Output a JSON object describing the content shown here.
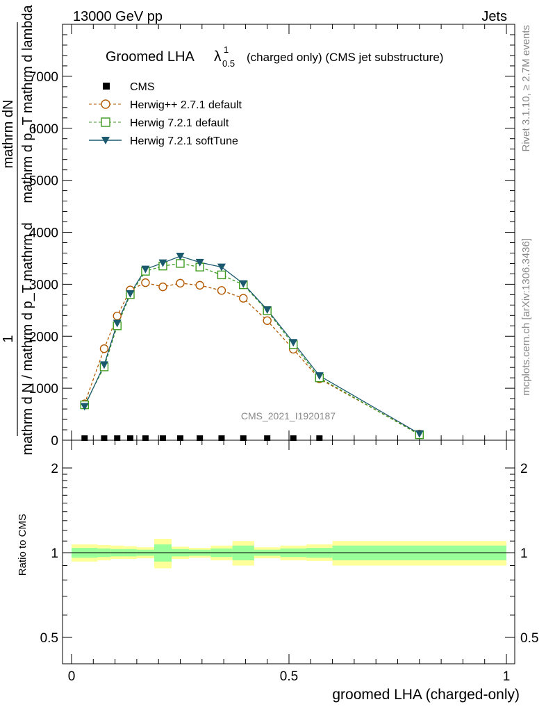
{
  "header": {
    "left": "13000 GeV pp",
    "right": "Jets"
  },
  "side": {
    "rivet": "Rivet 3.1.10, ≥ 2.7M events",
    "mcplots": "mcplots.cern.ch [arXiv:1306.3436]"
  },
  "watermark": "CMS_2021_I1920187",
  "main_title": {
    "prefix": "Groomed LHA",
    "lambda": "λ",
    "sup": "1",
    "sub": "0.5",
    "suffix": "(charged only) (CMS jet substructure)"
  },
  "ylabel_main": {
    "top": "mathrm dN",
    "mid": "mathrm d p_T mathrm d lambda",
    "one": "1",
    "bottom": "mathrm d N / mathrm d p_T mathrm d"
  },
  "ylabel_ratio": "Ratio to CMS",
  "xlabel": "groomed LHA (charged-only)",
  "colors": {
    "herwigpp": "#b35a00",
    "herwig721": "#3c9a1e",
    "softtune": "#1b5a6e",
    "band_inner": "#99ff99",
    "band_outer": "#ffff99"
  },
  "chart_data": [
    {
      "type": "line",
      "title": "Groomed LHA λ^1_0.5 (charged only) (CMS jet substructure)",
      "xlabel": "groomed LHA (charged-only)",
      "ylabel": "1 / mathrm d N / mathrm d p_T mathrm d × mathrm dN / mathrm d p_T mathrm d lambda",
      "xlim": [
        -0.02,
        1.0
      ],
      "ylim": [
        0,
        8000
      ],
      "yticks": [
        {
          "v": 0,
          "label": "0"
        },
        {
          "v": 1000,
          "label": "1000"
        },
        {
          "v": 2000,
          "label": "2000"
        },
        {
          "v": 3000,
          "label": "3000"
        },
        {
          "v": 4000,
          "label": "4000"
        },
        {
          "v": 5000,
          "label": "5000"
        },
        {
          "v": 6000,
          "label": "6000"
        },
        {
          "v": 7000,
          "label": "7000"
        }
      ],
      "legend_placement": "top-left",
      "x": [
        0.03,
        0.075,
        0.105,
        0.135,
        0.17,
        0.21,
        0.25,
        0.295,
        0.345,
        0.395,
        0.45,
        0.51,
        0.57,
        0.8
      ],
      "series": [
        {
          "name": "CMS",
          "marker": "square-filled",
          "values": [
            0.04,
            0.05,
            0.06,
            0.06,
            0.06,
            0.06,
            0.06,
            0.06,
            0.06,
            0.06,
            0.05,
            0.05,
            0.04,
            null
          ]
        },
        {
          "name": "Herwig++ 2.7.1 default",
          "marker": "circle-open",
          "values": [
            700,
            1760,
            2390,
            2890,
            3030,
            2950,
            3020,
            2980,
            2880,
            2730,
            2300,
            1750,
            1180,
            120
          ]
        },
        {
          "name": "Herwig 7.2.1 default",
          "marker": "square-open",
          "values": [
            680,
            1410,
            2200,
            2800,
            3250,
            3350,
            3400,
            3330,
            3180,
            2990,
            2490,
            1840,
            1200,
            105
          ]
        },
        {
          "name": "Herwig 7.2.1 softTune",
          "marker": "triangle-down-filled",
          "values": [
            650,
            1450,
            2250,
            2820,
            3290,
            3410,
            3540,
            3420,
            3330,
            3010,
            2510,
            1880,
            1240,
            125
          ]
        }
      ]
    },
    {
      "type": "area",
      "ylabel": "Ratio to CMS",
      "xlabel": "groomed LHA (charged-only)",
      "xlim": [
        -0.02,
        1.0
      ],
      "ylim": [
        0.4,
        2.3
      ],
      "log_y": true,
      "yticks": [
        {
          "v": 0.5,
          "label": "0.5"
        },
        {
          "v": 1,
          "label": "1"
        },
        {
          "v": 2,
          "label": "2"
        }
      ],
      "xticks": [
        {
          "v": 0,
          "label": "0"
        },
        {
          "v": 0.5,
          "label": "0.5"
        },
        {
          "v": 1,
          "label": "1"
        }
      ],
      "bins": [
        {
          "lo": 0.0,
          "hi": 0.06,
          "inner": [
            0.96,
            1.04
          ],
          "outer": [
            0.93,
            1.07
          ]
        },
        {
          "lo": 0.06,
          "hi": 0.09,
          "inner": [
            0.965,
            1.035
          ],
          "outer": [
            0.94,
            1.065
          ]
        },
        {
          "lo": 0.09,
          "hi": 0.12,
          "inner": [
            0.97,
            1.03
          ],
          "outer": [
            0.95,
            1.06
          ]
        },
        {
          "lo": 0.12,
          "hi": 0.15,
          "inner": [
            0.97,
            1.03
          ],
          "outer": [
            0.95,
            1.055
          ]
        },
        {
          "lo": 0.15,
          "hi": 0.19,
          "inner": [
            0.975,
            1.025
          ],
          "outer": [
            0.955,
            1.045
          ]
        },
        {
          "lo": 0.19,
          "hi": 0.23,
          "inner": [
            0.93,
            1.07
          ],
          "outer": [
            0.88,
            1.12
          ]
        },
        {
          "lo": 0.23,
          "hi": 0.27,
          "inner": [
            0.97,
            1.03
          ],
          "outer": [
            0.95,
            1.05
          ]
        },
        {
          "lo": 0.27,
          "hi": 0.32,
          "inner": [
            0.975,
            1.025
          ],
          "outer": [
            0.96,
            1.04
          ]
        },
        {
          "lo": 0.32,
          "hi": 0.37,
          "inner": [
            0.965,
            1.035
          ],
          "outer": [
            0.94,
            1.06
          ]
        },
        {
          "lo": 0.37,
          "hi": 0.42,
          "inner": [
            0.94,
            1.06
          ],
          "outer": [
            0.9,
            1.1
          ]
        },
        {
          "lo": 0.42,
          "hi": 0.48,
          "inner": [
            0.975,
            1.025
          ],
          "outer": [
            0.955,
            1.045
          ]
        },
        {
          "lo": 0.48,
          "hi": 0.54,
          "inner": [
            0.965,
            1.035
          ],
          "outer": [
            0.94,
            1.06
          ]
        },
        {
          "lo": 0.54,
          "hi": 0.6,
          "inner": [
            0.96,
            1.04
          ],
          "outer": [
            0.935,
            1.07
          ]
        },
        {
          "lo": 0.6,
          "hi": 1.0,
          "inner": [
            0.94,
            1.06
          ],
          "outer": [
            0.9,
            1.1
          ]
        }
      ]
    }
  ]
}
